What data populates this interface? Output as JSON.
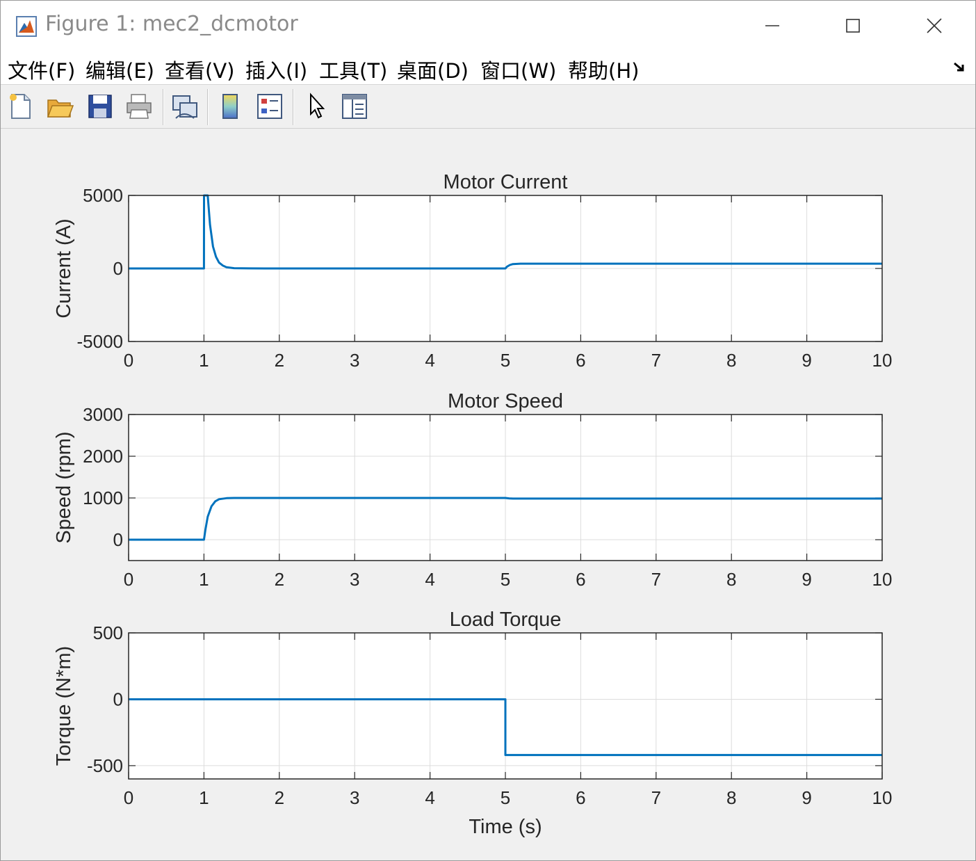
{
  "window": {
    "title": "Figure 1: mec2_dcmotor"
  },
  "menu": {
    "items": [
      "文件(F)",
      "编辑(E)",
      "查看(V)",
      "插入(I)",
      "工具(T)",
      "桌面(D)",
      "窗口(W)",
      "帮助(H)"
    ]
  },
  "toolbar": {
    "tools": [
      "new-figure-icon",
      "open-file-icon",
      "save-icon",
      "print-icon",
      "link-plot-icon",
      "colorbar-icon",
      "legend-icon",
      "pointer-icon",
      "property-inspector-icon"
    ]
  },
  "colors": {
    "line": "#0072bd",
    "grid": "#dcdcdc",
    "axes_bg": "#ffffff",
    "figure_bg": "#f0f0f0"
  },
  "chart_data": [
    {
      "type": "line",
      "title": "Motor Current",
      "xlabel": "",
      "ylabel": "Current (A)",
      "xlim": [
        0,
        10
      ],
      "ylim": [
        -5000,
        5000
      ],
      "xticks": [
        0,
        1,
        2,
        3,
        4,
        5,
        6,
        7,
        8,
        9,
        10
      ],
      "yticks": [
        -5000,
        0,
        5000
      ],
      "grid": true,
      "series": [
        {
          "x": [
            0,
            1.0,
            1.001,
            1.05,
            1.08,
            1.12,
            1.16,
            1.2,
            1.25,
            1.3,
            1.4,
            1.6,
            2,
            3,
            4,
            5.0,
            5.02,
            5.06,
            5.1,
            5.2,
            5.5,
            6,
            7,
            8,
            9,
            10
          ],
          "y": [
            0,
            0,
            5000,
            5000,
            3000,
            1500,
            800,
            400,
            200,
            80,
            20,
            5,
            0,
            0,
            0,
            0,
            120,
            240,
            300,
            330,
            330,
            330,
            330,
            330,
            330,
            330
          ]
        }
      ]
    },
    {
      "type": "line",
      "title": "Motor Speed",
      "xlabel": "",
      "ylabel": "Speed (rpm)",
      "xlim": [
        0,
        10
      ],
      "ylim": [
        -500,
        3000
      ],
      "xticks": [
        0,
        1,
        2,
        3,
        4,
        5,
        6,
        7,
        8,
        9,
        10
      ],
      "yticks": [
        0,
        1000,
        2000,
        3000
      ],
      "grid": true,
      "series": [
        {
          "x": [
            0,
            1.0,
            1.02,
            1.05,
            1.1,
            1.15,
            1.2,
            1.3,
            1.4,
            2,
            3,
            4,
            5.0,
            5.05,
            5.1,
            6,
            7,
            8,
            9,
            10
          ],
          "y": [
            0,
            0,
            250,
            550,
            800,
            920,
            970,
            995,
            1000,
            1000,
            1000,
            1000,
            1000,
            990,
            985,
            985,
            985,
            985,
            985,
            985
          ]
        }
      ]
    },
    {
      "type": "line",
      "title": "Load Torque",
      "xlabel": "Time (s)",
      "ylabel": "Torque (N*m)",
      "xlim": [
        0,
        10
      ],
      "ylim": [
        -600,
        500
      ],
      "xticks": [
        0,
        1,
        2,
        3,
        4,
        5,
        6,
        7,
        8,
        9,
        10
      ],
      "yticks": [
        -500,
        0,
        500
      ],
      "grid": true,
      "series": [
        {
          "x": [
            0,
            5.0,
            5.0,
            10
          ],
          "y": [
            0,
            0,
            -420,
            -420
          ]
        }
      ]
    }
  ]
}
